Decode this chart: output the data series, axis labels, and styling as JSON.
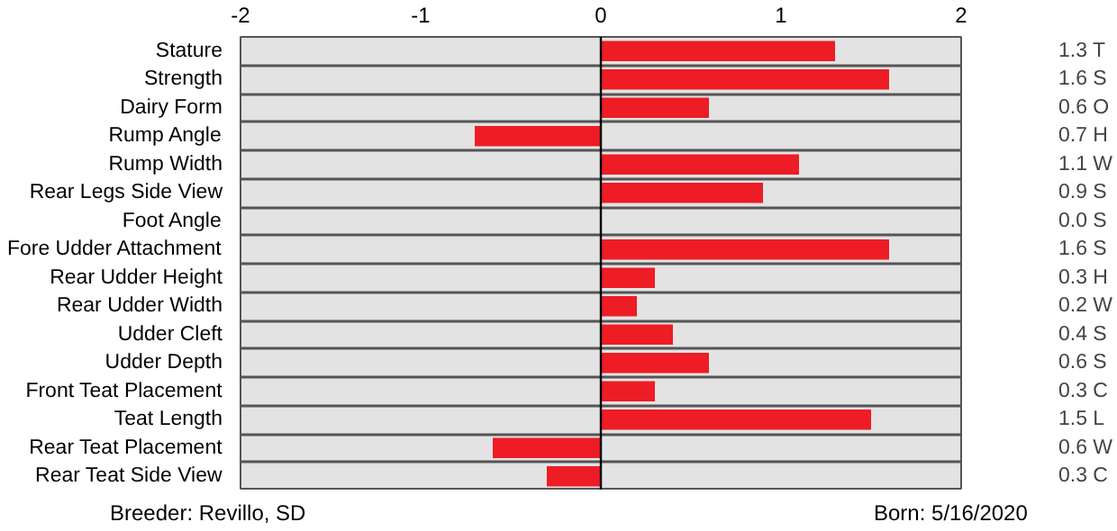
{
  "chart_data": {
    "type": "bar",
    "orientation": "horizontal",
    "categories": [
      "Stature",
      "Strength",
      "Dairy Form",
      "Rump Angle",
      "Rump Width",
      "Rear Legs Side View",
      "Foot Angle",
      "Fore Udder Attachment",
      "Rear Udder Height",
      "Rear Udder Width",
      "Udder Cleft",
      "Udder Depth",
      "Front Teat Placement",
      "Teat Length",
      "Rear Teat Placement",
      "Rear Teat Side View"
    ],
    "values": [
      1.3,
      1.6,
      0.6,
      -0.7,
      1.1,
      0.9,
      0.0,
      1.6,
      0.3,
      0.2,
      0.4,
      0.6,
      0.3,
      1.5,
      -0.6,
      -0.3
    ],
    "color": "#ee1c25",
    "xlim": [
      -2,
      2
    ],
    "xticks": [
      -2,
      -1,
      0,
      1,
      2
    ],
    "grid": "y",
    "ref_lines": [
      {
        "axis": "x",
        "value": 0,
        "color": "#000000"
      }
    ],
    "annotations": [
      "1.3 T",
      "1.6 S",
      "0.6 O",
      "0.7 H",
      "1.1 W",
      "0.9 S",
      "0.0 S",
      "1.6 S",
      "0.3 H",
      "0.2 W",
      "0.4 S",
      "0.6 S",
      "0.3 C",
      "1.5 L",
      "0.6 W",
      "0.3 C",
      "Breeder:  Revillo, SD",
      "Born:  5/16/2020"
    ]
  }
}
